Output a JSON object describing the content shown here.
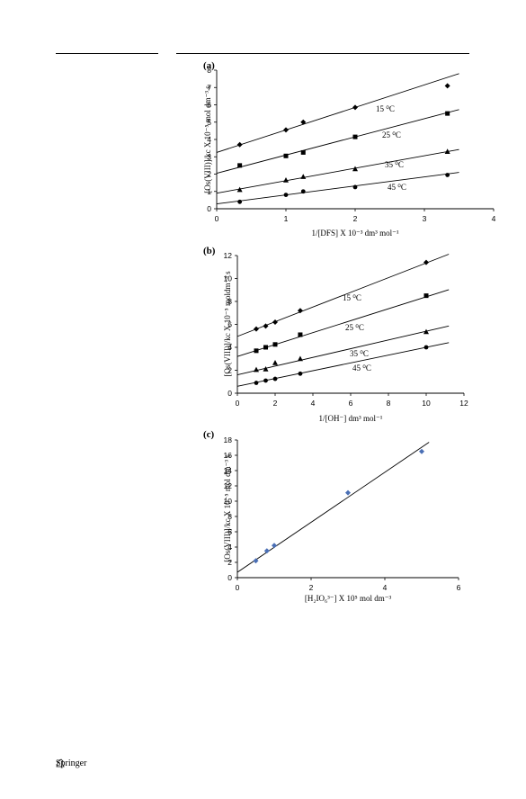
{
  "footer": {
    "publisher": "Springer"
  },
  "chart_data": [
    {
      "panel": "(a)",
      "type": "scatter",
      "ylabel": "[Os(VIII)]/kc X 10⁻⁵ mol dm⁻³ s",
      "xlabel": "1/[DFS] X 10⁻³ dm³ mol⁻¹",
      "xlim": [
        0,
        4
      ],
      "ylim": [
        0,
        8
      ],
      "xticks": [
        "0",
        "1",
        "2",
        "3",
        "4"
      ],
      "yticks": [
        "0",
        "1",
        "2",
        "3",
        "4",
        "5",
        "6",
        "7",
        "8"
      ],
      "series": [
        {
          "name": "15 ⁰C",
          "marker": "diamond",
          "x": [
            0.333,
            1.0,
            1.25,
            2.0,
            3.333
          ],
          "y": [
            3.7,
            4.55,
            5.0,
            5.85,
            7.1
          ],
          "fit": [
            3.25,
            1.3
          ]
        },
        {
          "name": "25 ⁰C",
          "marker": "square",
          "x": [
            0.333,
            1.0,
            1.25,
            2.0,
            3.333
          ],
          "y": [
            2.5,
            3.05,
            3.25,
            4.15,
            5.5
          ],
          "fit": [
            2.05,
            1.05
          ]
        },
        {
          "name": "35 ⁰C",
          "marker": "triangle",
          "x": [
            0.333,
            1.0,
            1.25,
            2.0,
            3.333
          ],
          "y": [
            1.1,
            1.65,
            1.85,
            2.3,
            3.3
          ],
          "fit": [
            0.9,
            0.72
          ]
        },
        {
          "name": "45 ⁰C",
          "marker": "circle",
          "x": [
            0.333,
            1.0,
            1.25,
            2.0,
            3.333
          ],
          "y": [
            0.4,
            0.8,
            1.0,
            1.25,
            1.95
          ],
          "fit": [
            0.28,
            0.52
          ]
        }
      ]
    },
    {
      "panel": "(b)",
      "type": "scatter",
      "ylabel": "[Os(VIII)]/kc X 10⁻⁵ moldm⁻³ s",
      "xlabel": "1/[OH⁻] dm³ mol⁻¹",
      "xlim": [
        0,
        12
      ],
      "ylim": [
        0,
        12
      ],
      "xticks": [
        "0",
        "2",
        "4",
        "6",
        "8",
        "10",
        "12"
      ],
      "yticks": [
        "0",
        "2",
        "4",
        "6",
        "8",
        "10",
        "12"
      ],
      "series": [
        {
          "name": "15 ⁰C",
          "marker": "diamond",
          "x": [
            1.0,
            1.5,
            2.0,
            3.33,
            10.0
          ],
          "y": [
            5.6,
            5.85,
            6.2,
            7.2,
            11.4
          ],
          "fit": [
            4.95,
            0.64
          ]
        },
        {
          "name": "25 ⁰C",
          "marker": "square",
          "x": [
            1.0,
            1.5,
            2.0,
            3.33,
            10.0
          ],
          "y": [
            3.7,
            4.0,
            4.25,
            5.1,
            8.5
          ],
          "fit": [
            3.2,
            0.52
          ]
        },
        {
          "name": "35 ⁰C",
          "marker": "triangle",
          "x": [
            1.0,
            1.5,
            2.0,
            3.33,
            10.0
          ],
          "y": [
            2.05,
            2.1,
            2.65,
            3.0,
            5.35
          ],
          "fit": [
            1.6,
            0.38
          ]
        },
        {
          "name": "45 ⁰C",
          "marker": "circle",
          "x": [
            1.0,
            1.5,
            2.0,
            3.33,
            10.0
          ],
          "y": [
            0.9,
            1.1,
            1.25,
            1.7,
            4.0
          ],
          "fit": [
            0.6,
            0.34
          ]
        }
      ]
    },
    {
      "panel": "(c)",
      "type": "scatter",
      "ylabel": "[Os(VIII)]/kc X 10⁻⁵ mol dm⁻³ s",
      "xlabel": "[H₂IO₆³⁻] X 10⁵ mol dm⁻³",
      "xlim": [
        0,
        6
      ],
      "ylim": [
        0,
        18
      ],
      "xticks": [
        "0",
        "2",
        "4",
        "6"
      ],
      "yticks": [
        "0",
        "2",
        "4",
        "6",
        "8",
        "10",
        "12",
        "14",
        "16",
        "18"
      ],
      "series": [
        {
          "name": "",
          "marker": "diamond",
          "color": "#4a6fb5",
          "x": [
            0.5,
            0.8,
            1.0,
            3.0,
            5.0
          ],
          "y": [
            2.2,
            3.5,
            4.2,
            11.1,
            16.5
          ],
          "fit": [
            0.7,
            3.27
          ]
        }
      ]
    }
  ]
}
